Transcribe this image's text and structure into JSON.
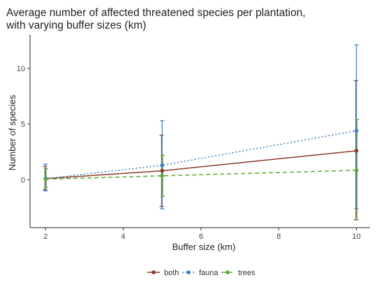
{
  "chart_data": {
    "type": "line",
    "title": "Average number of affected threatened species per plantation,",
    "subtitle": "with varying buffer sizes (km)",
    "xlabel": "Buffer size (km)",
    "ylabel": "Number of species",
    "xlim": [
      1.6,
      10.35
    ],
    "ylim": [
      -4.3,
      13.0
    ],
    "x_ticks": [
      2,
      4,
      6,
      8,
      10
    ],
    "y_ticks": [
      0,
      5,
      10
    ],
    "grid": false,
    "legend_position": "bottom",
    "x": [
      2,
      5,
      10
    ],
    "series": [
      {
        "name": "both",
        "color": "#8B3A2A",
        "line_style": "solid",
        "values": [
          0.1,
          0.8,
          2.6
        ],
        "error_low": [
          -0.9,
          -2.4,
          -3.6
        ],
        "error_high": [
          1.2,
          4.0,
          8.9
        ]
      },
      {
        "name": "fauna",
        "color": "#3B7DC4",
        "line_style": "dotted",
        "values": [
          0.1,
          1.3,
          4.4
        ],
        "error_low": [
          -1.0,
          -2.6,
          -2.6
        ],
        "error_high": [
          1.4,
          5.3,
          12.1
        ]
      },
      {
        "name": "trees",
        "color": "#5BA83A",
        "line_style": "dashed",
        "values": [
          0.05,
          0.35,
          0.85
        ],
        "error_low": [
          -0.7,
          -1.5,
          -3.6
        ],
        "error_high": [
          1.0,
          2.2,
          5.4
        ]
      }
    ]
  }
}
